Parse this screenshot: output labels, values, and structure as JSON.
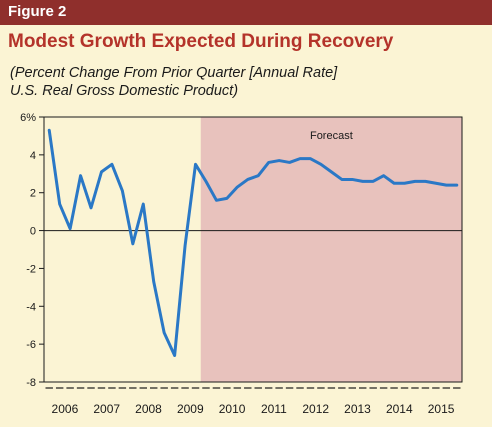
{
  "figure_label": "Figure 2",
  "title": "Modest Growth Expected During Recovery",
  "subtitle_line1": "(Percent Change From Prior Quarter [Annual Rate]",
  "subtitle_line2": "U.S. Real Gross Domestic Product)",
  "colors": {
    "header_bar": "#8f2f2c",
    "title": "#b4332a",
    "panel_bg": "#fbf4d4",
    "forecast_bg": "#e8c2bd",
    "line": "#2a78c6"
  },
  "chart_data": {
    "type": "line",
    "title": "",
    "xlabel": "",
    "ylabel": "",
    "ylim": [
      -8,
      6
    ],
    "y_ticks": [
      6,
      4,
      2,
      0,
      -2,
      -4,
      -6,
      -8
    ],
    "y_tick_labels": [
      "6%",
      "4",
      "2",
      "0",
      "-2",
      "-4",
      "-6",
      "-8"
    ],
    "years": [
      "2006",
      "2007",
      "2008",
      "2009",
      "2010",
      "2011",
      "2012",
      "2013",
      "2014",
      "2015"
    ],
    "quarters_per_year": 4,
    "forecast": {
      "label": "Forecast",
      "start_quarter": "2009 Q4",
      "end_quarter": "2015 Q4"
    },
    "grid": false,
    "series": [
      {
        "x": [
          "2006 Q1",
          "2006 Q2",
          "2006 Q3",
          "2006 Q4",
          "2007 Q1",
          "2007 Q2",
          "2007 Q3",
          "2007 Q4",
          "2008 Q1",
          "2008 Q2",
          "2008 Q3",
          "2008 Q4",
          "2009 Q1",
          "2009 Q2",
          "2009 Q3",
          "2009 Q4",
          "2010 Q1",
          "2010 Q2",
          "2010 Q3",
          "2010 Q4",
          "2011 Q1",
          "2011 Q2",
          "2011 Q3",
          "2011 Q4",
          "2012 Q1",
          "2012 Q2",
          "2012 Q3",
          "2012 Q4",
          "2013 Q1",
          "2013 Q2",
          "2013 Q3",
          "2013 Q4",
          "2014 Q1",
          "2014 Q2",
          "2014 Q3",
          "2014 Q4",
          "2015 Q1",
          "2015 Q2",
          "2015 Q3",
          "2015 Q4"
        ],
        "values": [
          5.3,
          1.4,
          0.1,
          2.9,
          1.2,
          3.1,
          3.5,
          2.1,
          -0.7,
          1.4,
          -2.7,
          -5.4,
          -6.6,
          -0.8,
          3.5,
          2.6,
          1.6,
          1.7,
          2.3,
          2.7,
          2.9,
          3.6,
          3.7,
          3.6,
          3.8,
          3.8,
          3.5,
          3.1,
          2.7,
          2.7,
          2.6,
          2.6,
          2.9,
          2.5,
          2.5,
          2.6,
          2.6,
          2.5,
          2.4,
          2.4
        ]
      }
    ]
  }
}
